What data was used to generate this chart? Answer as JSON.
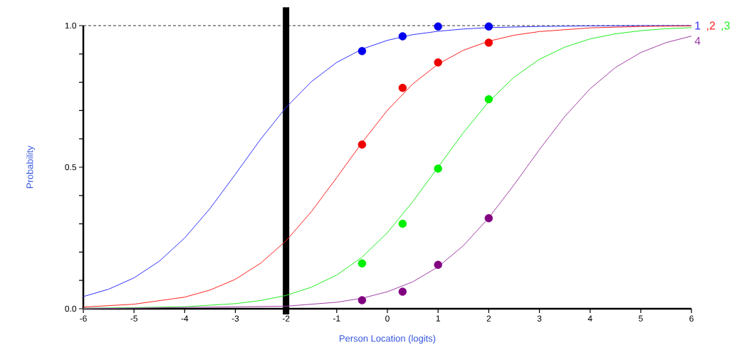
{
  "chart_data": {
    "type": "line",
    "xlabel": "Person Location (logits)",
    "ylabel": "Probability",
    "xlim": [
      -6,
      6
    ],
    "ylim": [
      0,
      1
    ],
    "xticks": [
      -6,
      -5,
      -4,
      -3,
      -2,
      -1,
      0,
      1,
      2,
      3,
      4,
      5,
      6
    ],
    "yticks": [
      {
        "value": 0,
        "label": "0.0"
      },
      {
        "value": 0.1,
        "label": null
      },
      {
        "value": 0.2,
        "label": null
      },
      {
        "value": 0.3,
        "label": null
      },
      {
        "value": 0.4,
        "label": null
      },
      {
        "value": 0.5,
        "label": "0.5"
      },
      {
        "value": 0.6,
        "label": null
      },
      {
        "value": 0.7,
        "label": null
      },
      {
        "value": 0.8,
        "label": null
      },
      {
        "value": 0.9,
        "label": null
      },
      {
        "value": 1,
        "label": "1.0"
      }
    ],
    "grid": false,
    "legend": false,
    "ref_lines": [
      {
        "axis": "y",
        "value": 1,
        "color": "#333333",
        "line_style": "dashed"
      },
      {
        "axis": "x",
        "value": -2,
        "color": "#000000"
      }
    ],
    "series": [
      {
        "name": "1",
        "color": "#3333ff",
        "x": [
          -6,
          -5.5,
          -5,
          -4.5,
          -4,
          -3.5,
          -3,
          -2.5,
          -2,
          -1.5,
          -1,
          -0.5,
          0,
          0.5,
          1,
          1.5,
          2,
          3,
          4,
          5,
          6
        ],
        "values": [
          0.043,
          0.069,
          0.109,
          0.168,
          0.25,
          0.354,
          0.475,
          0.599,
          0.711,
          0.802,
          0.87,
          0.917,
          0.948,
          0.968,
          0.98,
          0.988,
          0.993,
          0.997,
          0.999,
          1,
          1
        ]
      },
      {
        "name": ",2",
        "color": "#ff2222",
        "x": [
          -6,
          -5,
          -4,
          -3.5,
          -3,
          -2.5,
          -2,
          -1.5,
          -1,
          -0.5,
          0,
          0.5,
          1,
          1.5,
          2,
          2.5,
          3,
          4,
          5,
          6
        ],
        "values": [
          0.006,
          0.016,
          0.041,
          0.066,
          0.104,
          0.161,
          0.24,
          0.343,
          0.463,
          0.587,
          0.701,
          0.794,
          0.864,
          0.913,
          0.945,
          0.966,
          0.979,
          0.992,
          0.997,
          0.999
        ]
      },
      {
        "name": ",3",
        "color": "#22ee22",
        "x": [
          -6,
          -4,
          -3,
          -2.5,
          -2,
          -1.5,
          -1,
          -0.5,
          0,
          0.5,
          1,
          1.5,
          2,
          2.5,
          3,
          3.5,
          4,
          4.5,
          5,
          5.5,
          6
        ],
        "values": [
          0.001,
          0.007,
          0.018,
          0.029,
          0.047,
          0.076,
          0.119,
          0.182,
          0.269,
          0.378,
          0.5,
          0.622,
          0.731,
          0.818,
          0.881,
          0.924,
          0.953,
          0.971,
          0.982,
          0.989,
          0.993
        ]
      },
      {
        "name": "4",
        "color": "#a040a8",
        "x": [
          -6,
          -2,
          -1,
          -0.5,
          0,
          0.5,
          1,
          1.5,
          2,
          2.5,
          3,
          3.5,
          4,
          4.5,
          5,
          5.5,
          6
        ],
        "values": [
          0,
          0.009,
          0.023,
          0.037,
          0.06,
          0.095,
          0.148,
          0.223,
          0.321,
          0.438,
          0.562,
          0.679,
          0.777,
          0.852,
          0.905,
          0.94,
          0.963
        ]
      },
      {
        "type": "scatter",
        "marker": "circle",
        "color": "#0000ee",
        "x": [
          -0.5,
          0.3,
          1,
          2
        ],
        "values": [
          0.91,
          0.962,
          0.997,
          0.997
        ]
      },
      {
        "type": "scatter",
        "marker": "circle",
        "color": "#ee0000",
        "x": [
          -0.5,
          0.3,
          1,
          2
        ],
        "values": [
          0.58,
          0.78,
          0.87,
          0.94
        ]
      },
      {
        "type": "scatter",
        "marker": "circle",
        "color": "#00ee00",
        "x": [
          -0.5,
          0.3,
          1,
          2
        ],
        "values": [
          0.16,
          0.3,
          0.495,
          0.74
        ]
      },
      {
        "type": "scatter",
        "marker": "circle",
        "color": "#800080",
        "x": [
          -0.5,
          0.3,
          1,
          2
        ],
        "values": [
          0.03,
          0.06,
          0.155,
          0.32
        ]
      }
    ]
  }
}
